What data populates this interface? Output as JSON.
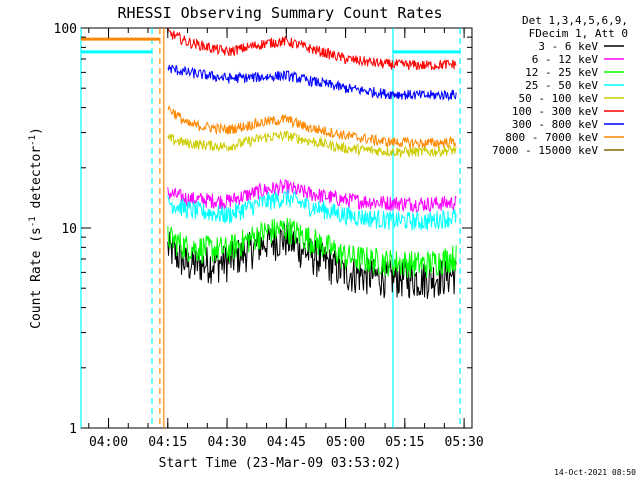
{
  "chart_data": {
    "type": "line",
    "title": "RHESSI Observing Summary Count Rates",
    "xlabel": "Start Time (23-Mar-09 03:53:02)",
    "ylabel": "Count Rate (s",
    "ylabel_sup": "-1",
    "ylabel_tail": " detector",
    "ylabel_end": ")",
    "y_scale": "log",
    "ylim": [
      1,
      100
    ],
    "y_ticks": [
      {
        "v": 1,
        "label": "1"
      },
      {
        "v": 10,
        "label": "10"
      },
      {
        "v": 100,
        "label": "100"
      }
    ],
    "xlim": [
      "03:53:02",
      "05:32:00"
    ],
    "x_ticks": [
      "04:00",
      "04:15",
      "04:30",
      "04:45",
      "05:00",
      "05:15",
      "05:30"
    ],
    "legend_placement": "outside-right",
    "legend_header": [
      "Det 1,3,4,5,6,9,",
      "FDecim 1, Att 0"
    ],
    "series": [
      {
        "name": "3 - 6 keV",
        "color": "#000000",
        "points": [
          [
            "04:15",
            8.0
          ],
          [
            "04:20",
            6.6
          ],
          [
            "04:30",
            6.8
          ],
          [
            "04:40",
            8.6
          ],
          [
            "04:45",
            8.9
          ],
          [
            "04:50",
            7.6
          ],
          [
            "05:00",
            6.0
          ],
          [
            "05:10",
            5.7
          ],
          [
            "05:20",
            5.6
          ],
          [
            "05:28",
            5.9
          ]
        ]
      },
      {
        "name": "6 - 12 keV",
        "color": "#ff00ff",
        "points": [
          [
            "04:15",
            15.0
          ],
          [
            "04:20",
            14.0
          ],
          [
            "04:30",
            13.6
          ],
          [
            "04:40",
            15.6
          ],
          [
            "04:45",
            16.0
          ],
          [
            "04:50",
            15.0
          ],
          [
            "05:00",
            13.8
          ],
          [
            "05:10",
            13.4
          ],
          [
            "05:20",
            13.2
          ],
          [
            "05:28",
            13.4
          ]
        ]
      },
      {
        "name": "12 - 25 keV",
        "color": "#00ff00",
        "points": [
          [
            "04:15",
            9.0
          ],
          [
            "04:20",
            8.0
          ],
          [
            "04:30",
            7.8
          ],
          [
            "04:40",
            9.6
          ],
          [
            "04:45",
            10.0
          ],
          [
            "04:50",
            9.0
          ],
          [
            "05:00",
            7.2
          ],
          [
            "05:10",
            6.8
          ],
          [
            "05:20",
            6.6
          ],
          [
            "05:28",
            7.2
          ]
        ]
      },
      {
        "name": "25 - 50 keV",
        "color": "#00ffff",
        "points": [
          [
            "04:15",
            13.5
          ],
          [
            "04:20",
            12.4
          ],
          [
            "04:30",
            11.6
          ],
          [
            "04:40",
            13.6
          ],
          [
            "04:45",
            14.2
          ],
          [
            "04:50",
            13.0
          ],
          [
            "05:00",
            11.6
          ],
          [
            "05:10",
            11.0
          ],
          [
            "05:20",
            10.8
          ],
          [
            "05:28",
            11.4
          ]
        ]
      },
      {
        "name": "50 - 100 keV",
        "color": "#cccc00",
        "points": [
          [
            "04:15",
            28.0
          ],
          [
            "04:20",
            26.5
          ],
          [
            "04:30",
            25.5
          ],
          [
            "04:40",
            28.5
          ],
          [
            "04:45",
            29.0
          ],
          [
            "04:50",
            27.5
          ],
          [
            "05:00",
            25.0
          ],
          [
            "05:10",
            24.2
          ],
          [
            "05:20",
            24.0
          ],
          [
            "05:28",
            24.6
          ]
        ]
      },
      {
        "name": "100 - 300 keV",
        "color": "#ff0000",
        "points": [
          [
            "04:15",
            95.0
          ],
          [
            "04:20",
            85.0
          ],
          [
            "04:30",
            76.0
          ],
          [
            "04:40",
            84.0
          ],
          [
            "04:45",
            86.0
          ],
          [
            "04:50",
            80.0
          ],
          [
            "05:00",
            70.0
          ],
          [
            "05:10",
            66.0
          ],
          [
            "05:20",
            65.0
          ],
          [
            "05:28",
            66.0
          ]
        ]
      },
      {
        "name": "300 - 800 keV",
        "color": "#0000ff",
        "points": [
          [
            "04:15",
            63.0
          ],
          [
            "04:20",
            60.0
          ],
          [
            "04:30",
            56.0
          ],
          [
            "04:40",
            57.0
          ],
          [
            "04:45",
            58.0
          ],
          [
            "04:50",
            55.0
          ],
          [
            "05:00",
            50.0
          ],
          [
            "05:10",
            47.0
          ],
          [
            "05:20",
            46.0
          ],
          [
            "05:28",
            46.5
          ]
        ]
      },
      {
        "name": "800 - 7000 keV",
        "color": "#ff8800",
        "points": [
          [
            "04:15",
            40.0
          ],
          [
            "04:20",
            33.0
          ],
          [
            "04:30",
            31.0
          ],
          [
            "04:40",
            34.0
          ],
          [
            "04:45",
            35.0
          ],
          [
            "04:50",
            32.0
          ],
          [
            "05:00",
            29.0
          ],
          [
            "05:10",
            27.0
          ],
          [
            "05:20",
            26.5
          ],
          [
            "05:28",
            27.0
          ]
        ]
      },
      {
        "name": "7000 - 15000 keV",
        "color": "#886600",
        "points": []
      }
    ],
    "attenuator_segments": [
      {
        "color": "#ff8800",
        "points": [
          [
            "03:53:02",
            88.0
          ],
          [
            "04:13",
            88.0
          ]
        ]
      },
      {
        "color": "#00ffff",
        "points": [
          [
            "03:53:02",
            76.0
          ],
          [
            "04:11",
            76.0
          ]
        ]
      },
      {
        "color": "#00ffff",
        "points": [
          [
            "05:12",
            76.0
          ],
          [
            "05:29",
            76.0
          ]
        ]
      }
    ],
    "vertical_markers": [
      {
        "time": "04:11",
        "color": "#00ffff",
        "style": "dashed"
      },
      {
        "time": "04:13",
        "color": "#ff8800",
        "style": "dashed"
      },
      {
        "time": "04:14",
        "color": "#ff8800",
        "style": "solid"
      },
      {
        "time": "05:12",
        "color": "#00ffff",
        "style": "solid"
      },
      {
        "time": "05:29",
        "color": "#00ffff",
        "style": "dashed"
      },
      {
        "time": "03:53:02",
        "color": "#00ffff",
        "style": "solid"
      }
    ]
  },
  "footer": {
    "timestamp": "14-Oct-2021 08:50"
  }
}
